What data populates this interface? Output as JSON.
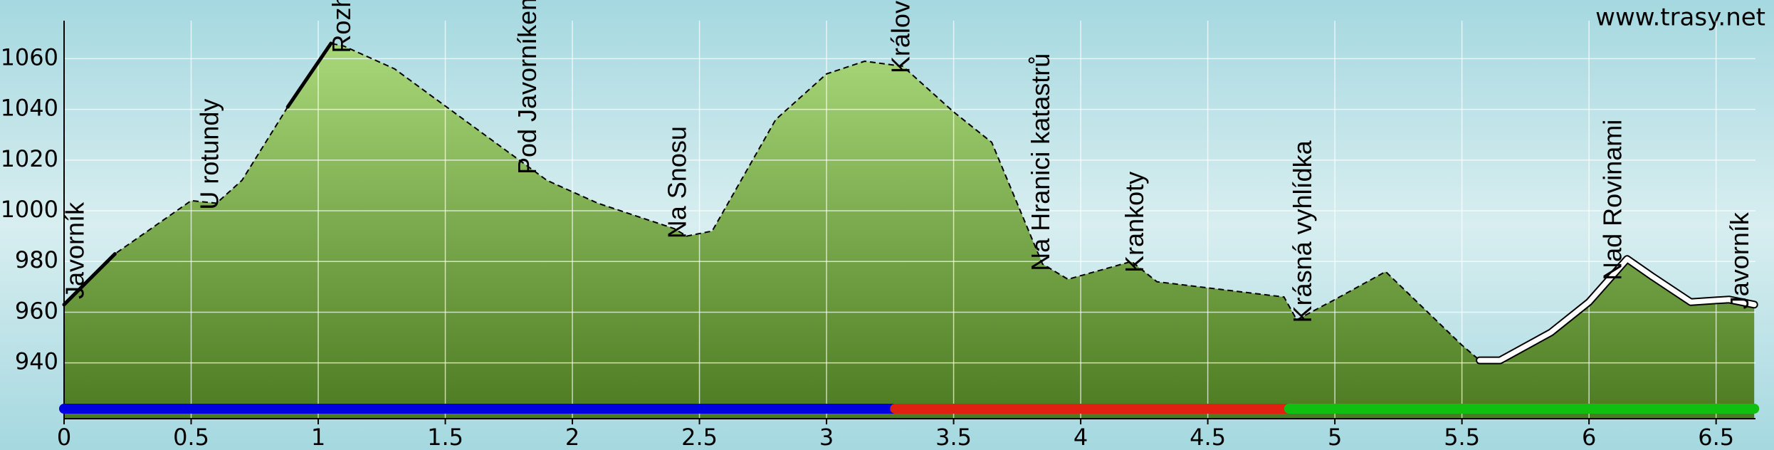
{
  "chart_data": {
    "type": "area",
    "watermark": "www.trasy.net",
    "x": [
      0,
      0.2,
      0.5,
      0.6,
      0.7,
      0.88,
      1.05,
      1.1,
      1.3,
      1.6,
      1.9,
      2.1,
      2.4,
      2.45,
      2.55,
      2.8,
      3.0,
      3.15,
      3.3,
      3.5,
      3.65,
      3.85,
      3.95,
      4.2,
      4.3,
      4.8,
      4.85,
      5.0,
      5.2,
      5.5,
      5.57,
      5.65,
      5.85,
      6.0,
      6.15,
      6.25,
      6.4,
      6.55,
      6.65
    ],
    "values": [
      963,
      983,
      1004,
      1003,
      1012,
      1041,
      1066,
      1065,
      1056,
      1034,
      1012,
      1003,
      993,
      990,
      992,
      1036,
      1054,
      1059,
      1057,
      1039,
      1027,
      979,
      973,
      980,
      972,
      966,
      957,
      965,
      976,
      947,
      941,
      941,
      952,
      964,
      981,
      974,
      964,
      965,
      963
    ],
    "waypoints": [
      {
        "name": "Javorník",
        "x": 0.05
      },
      {
        "name": "U rotundy",
        "x": 0.58
      },
      {
        "name": "Rozhledna na Javorníku",
        "x": 1.1
      },
      {
        "name": "Pod Javorníkem",
        "x": 1.83
      },
      {
        "name": "Na Snosu",
        "x": 2.42
      },
      {
        "name": "Královský kámen",
        "x": 3.3
      },
      {
        "name": "Na Hranici katastrů",
        "x": 3.85
      },
      {
        "name": "Krankoty",
        "x": 4.22
      },
      {
        "name": "Krásná vyhlídka",
        "x": 4.88
      },
      {
        "name": "Nad Rovinami",
        "x": 6.1
      },
      {
        "name": "Javorník",
        "x": 6.6
      }
    ],
    "segments": [
      {
        "color": "#0000e0",
        "from": 0,
        "to": 3.27
      },
      {
        "color": "#e02010",
        "from": 3.27,
        "to": 4.82
      },
      {
        "color": "#10c010",
        "from": 4.82,
        "to": 6.65
      }
    ],
    "highlights": [
      {
        "color": "#000000",
        "from": 0,
        "to": 0.2
      },
      {
        "color": "#000000",
        "from": 0.88,
        "to": 1.05
      },
      {
        "color": "#ffffff",
        "from": 5.57,
        "to": 6.65
      }
    ],
    "xlim": [
      0,
      6.655
    ],
    "ylim": [
      918,
      1075
    ],
    "xticks": [
      0,
      0.5,
      1,
      1.5,
      2,
      2.5,
      3,
      3.5,
      4,
      4.5,
      5,
      5.5,
      6,
      6.5
    ],
    "yticks": [
      940,
      960,
      980,
      1000,
      1020,
      1040,
      1060
    ],
    "grid": true
  }
}
